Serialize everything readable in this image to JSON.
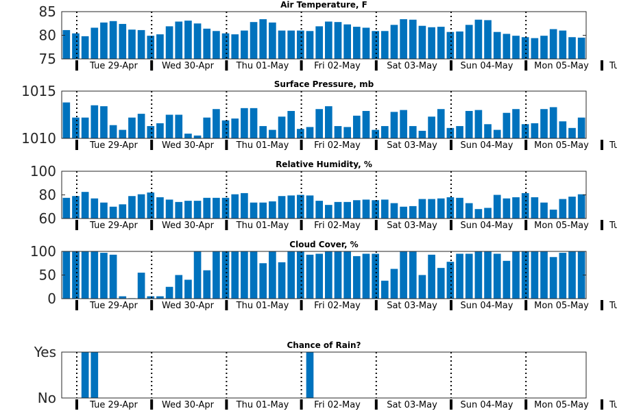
{
  "chart_data": [
    {
      "type": "bar",
      "title": "Air Temperature, F",
      "ylim": [
        75,
        85
      ],
      "yticks": [
        "75",
        "80",
        "85"
      ],
      "grid": false,
      "values": [
        81.1,
        80.4,
        79.8,
        81.6,
        82.7,
        83.0,
        82.4,
        81.2,
        81.1,
        79.9,
        80.2,
        81.9,
        82.9,
        83.1,
        82.5,
        81.4,
        80.9,
        80.4,
        80.2,
        81.0,
        82.8,
        83.4,
        82.7,
        81.0,
        81.0,
        81.0,
        80.9,
        81.9,
        82.9,
        82.8,
        82.3,
        81.8,
        81.6,
        80.9,
        80.9,
        82.2,
        83.4,
        83.3,
        82.0,
        81.7,
        81.8,
        80.7,
        80.8,
        82.2,
        83.3,
        83.2,
        80.7,
        80.3,
        79.9,
        79.6,
        79.4,
        79.9,
        81.3,
        81.0,
        79.6,
        79.5
      ]
    },
    {
      "type": "bar",
      "title": "Surface Pressure, mb",
      "ylim": [
        1010,
        1015
      ],
      "yticks": [
        "1010",
        "1015"
      ],
      "grid": false,
      "values": [
        1013.8,
        1012.2,
        1012.2,
        1013.5,
        1013.4,
        1011.4,
        1010.9,
        1012.2,
        1012.6,
        1011.3,
        1011.6,
        1012.5,
        1012.5,
        1010.5,
        1010.3,
        1012.2,
        1013.1,
        1011.9,
        1012.1,
        1013.2,
        1013.2,
        1011.3,
        1010.9,
        1012.3,
        1012.9,
        1011.0,
        1011.2,
        1013.1,
        1013.4,
        1011.3,
        1011.2,
        1012.4,
        1012.9,
        1010.9,
        1011.3,
        1012.8,
        1013.0,
        1011.3,
        1010.8,
        1012.3,
        1013.1,
        1011.1,
        1011.3,
        1012.9,
        1013.0,
        1011.5,
        1010.9,
        1012.7,
        1013.1,
        1011.5,
        1011.6,
        1013.1,
        1013.3,
        1011.8,
        1011.1,
        1012.2
      ]
    },
    {
      "type": "bar",
      "title": "Relative Humidity, %",
      "ylim": [
        60,
        100
      ],
      "yticks": [
        "60",
        "80",
        "100"
      ],
      "grid": false,
      "values": [
        77.5,
        79,
        82.5,
        77,
        73.5,
        70,
        72,
        79,
        80.5,
        82,
        78,
        76,
        74,
        75,
        75,
        77.5,
        77.5,
        77.5,
        80.5,
        81.5,
        73.5,
        73.5,
        74.5,
        79,
        79.5,
        80,
        79.5,
        75,
        71.5,
        74,
        74,
        75.5,
        76,
        75.5,
        76,
        73,
        70,
        70.5,
        76.5,
        76.5,
        77,
        78,
        77.5,
        73,
        68,
        69,
        80,
        77,
        78,
        81.5,
        78,
        73.5,
        67.5,
        76.5,
        78.5,
        80.5
      ]
    },
    {
      "type": "bar",
      "title": "Cloud Cover, %",
      "ylim": [
        0,
        100
      ],
      "yticks": [
        "0",
        "50",
        "100"
      ],
      "grid": false,
      "values": [
        100,
        100,
        100,
        100,
        97,
        93,
        5,
        1,
        55,
        5,
        5,
        25,
        50,
        40,
        100,
        60,
        100,
        100,
        100,
        100,
        100,
        75,
        100,
        77,
        100,
        100,
        93,
        95,
        100,
        100,
        100,
        90,
        95,
        95,
        38,
        63,
        100,
        100,
        50,
        93,
        65,
        78,
        95,
        95,
        100,
        100,
        95,
        80,
        100,
        100,
        100,
        100,
        88,
        97,
        100,
        100
      ]
    },
    {
      "type": "bar",
      "title": "Chance of Rain?",
      "ylim": [
        0,
        1
      ],
      "yticks": [
        "No",
        "Yes"
      ],
      "grid": false,
      "values": [
        0,
        0,
        1,
        1,
        0,
        0,
        0,
        0,
        0,
        0,
        0,
        0,
        0,
        0,
        0,
        0,
        0,
        0,
        0,
        0,
        0,
        0,
        0,
        0,
        0,
        0,
        1,
        0,
        0,
        0,
        0,
        0,
        0,
        0,
        0,
        0,
        0,
        0,
        0,
        0,
        0,
        0,
        0,
        0,
        0,
        0,
        0,
        0,
        0,
        0,
        0,
        0,
        0,
        0,
        0,
        0
      ]
    }
  ],
  "x_ticks": [
    "Tue 29-Apr",
    "Wed 30-Apr",
    "Thu 01-May",
    "Fri 02-May",
    "Sat 03-May",
    "Sun 04-May",
    "Mon 05-May",
    "Tu"
  ],
  "colors": {
    "bar": "#0072bd",
    "day_divider": "#000000"
  }
}
